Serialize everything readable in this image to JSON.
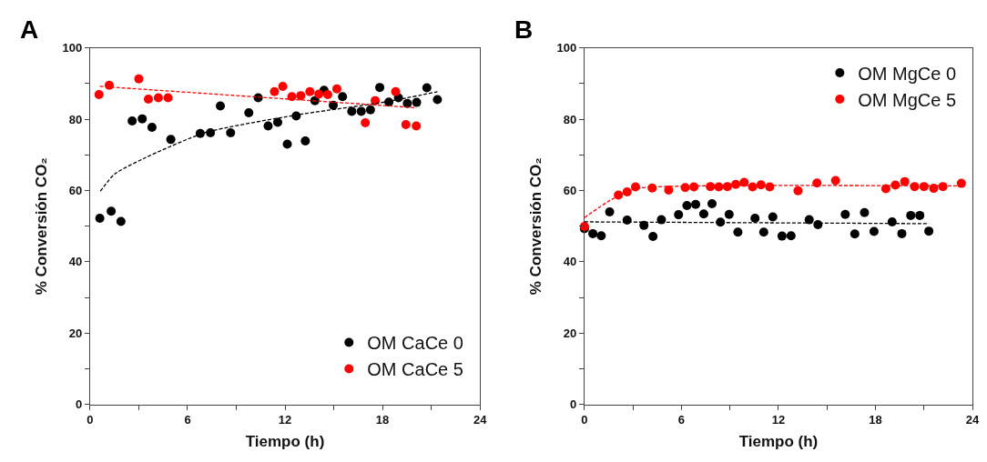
{
  "chart_data": [
    {
      "type": "scatter",
      "title": "A",
      "xlabel": "Tiempo (h)",
      "ylabel": "% Conversión CO₂",
      "xlim": [
        0,
        24
      ],
      "ylim": [
        0,
        100
      ],
      "xticks": [
        0,
        {
          "value": 3,
          "label": null
        },
        6,
        {
          "value": 9,
          "label": null
        },
        12,
        {
          "value": 15,
          "label": null
        },
        18,
        {
          "value": 21,
          "label": null
        },
        24
      ],
      "yticks": [
        0,
        {
          "value": 10,
          "label": null
        },
        20,
        {
          "value": 30,
          "label": null
        },
        40,
        {
          "value": 50,
          "label": null
        },
        60,
        {
          "value": 70,
          "label": null
        },
        80,
        {
          "value": 90,
          "label": null
        },
        100
      ],
      "legend": "bottom right",
      "marker": "circle",
      "series": [
        {
          "name": "OM CaCe 0",
          "color": "#000000",
          "x": [
            0.6,
            1.3,
            1.9,
            2.59,
            3.21,
            3.81,
            4.97,
            6.78,
            7.41,
            8.02,
            8.65,
            9.77,
            10.35,
            10.96,
            11.55,
            12.14,
            12.69,
            13.25,
            13.84,
            14.4,
            14.97,
            15.54,
            16.11,
            16.69,
            17.26,
            17.83,
            18.39,
            18.98,
            19.53,
            20.1,
            20.73,
            21.38
          ],
          "values": [
            52.2,
            54.2,
            51.3,
            79.5,
            80.1,
            77.7,
            74.3,
            76.0,
            76.2,
            83.7,
            76.2,
            81.8,
            86.0,
            78.1,
            79.1,
            73.0,
            80.9,
            73.9,
            85.2,
            88.1,
            83.9,
            86.3,
            82.2,
            82.2,
            82.6,
            88.9,
            84.8,
            86.0,
            84.4,
            84.7,
            88.8,
            85.5
          ]
        },
        {
          "name": "OM CaCe 5",
          "color": "#ff0000",
          "x": [
            0.55,
            1.18,
            3.0,
            3.59,
            4.2,
            4.8,
            11.35,
            11.86,
            12.42,
            12.97,
            13.53,
            14.08,
            14.63,
            15.19,
            16.94,
            17.55,
            18.81,
            19.44,
            20.08
          ],
          "values": [
            86.9,
            89.5,
            91.3,
            85.6,
            86.0,
            86.0,
            87.7,
            89.2,
            86.3,
            86.6,
            87.7,
            87.0,
            86.9,
            88.5,
            79.0,
            85.2,
            87.7,
            78.5,
            78.1
          ]
        },
        {
          "type": "line",
          "line_style": "dashed",
          "marker": "none",
          "color": "#000000",
          "x": [
            0.63,
            1.51,
            3.36,
            7.06,
            12.6,
            18.14,
            21.38
          ],
          "values": [
            59.8,
            64.6,
            69.1,
            76.2,
            81.1,
            84.8,
            87.7
          ]
        },
        {
          "type": "line",
          "line_style": "dashed",
          "marker": "none",
          "color": "#ff0000",
          "x": [
            0.6,
            20.08
          ],
          "values": [
            89.2,
            83.2
          ]
        }
      ]
    },
    {
      "type": "scatter",
      "title": "B",
      "xlabel": "Tiempo (h)",
      "ylabel": "% Conversión CO₂",
      "xlim": [
        0,
        24
      ],
      "ylim": [
        0,
        100
      ],
      "xticks": [
        0,
        {
          "value": 3,
          "label": null
        },
        6,
        {
          "value": 9,
          "label": null
        },
        12,
        {
          "value": 15,
          "label": null
        },
        18,
        {
          "value": 21,
          "label": null
        },
        24
      ],
      "yticks": [
        0,
        {
          "value": 10,
          "label": null
        },
        20,
        {
          "value": 30,
          "label": null
        },
        40,
        {
          "value": 50,
          "label": null
        },
        60,
        {
          "value": 70,
          "label": null
        },
        80,
        {
          "value": 90,
          "label": null
        },
        100
      ],
      "legend": "top right",
      "marker": "circle",
      "series": [
        {
          "name": "OM MgCe 0",
          "color": "#000000",
          "x": [
            0,
            0.52,
            1.04,
            1.56,
            2.64,
            3.68,
            4.24,
            4.76,
            5.82,
            6.34,
            6.88,
            7.38,
            7.89,
            8.41,
            8.95,
            9.49,
            10.55,
            11.09,
            11.65,
            12.22,
            12.78,
            13.9,
            14.44,
            16.13,
            16.72,
            17.32,
            17.91,
            19.03,
            19.63,
            20.18,
            20.74,
            21.3
          ],
          "values": [
            49.3,
            47.9,
            47.3,
            54.0,
            51.7,
            50.2,
            47.1,
            51.8,
            53.2,
            55.8,
            56.1,
            53.4,
            56.3,
            51.1,
            53.3,
            48.3,
            52.2,
            48.3,
            52.6,
            47.2,
            47.3,
            51.8,
            50.4,
            53.3,
            47.8,
            53.8,
            48.5,
            51.2,
            47.9,
            53.0,
            53.0,
            48.6
          ]
        },
        {
          "name": "OM MgCe 5",
          "color": "#ff0000",
          "x": [
            0,
            2.1,
            2.64,
            3.16,
            4.19,
            5.21,
            6.23,
            6.77,
            7.79,
            8.31,
            8.84,
            9.36,
            9.88,
            10.4,
            10.92,
            11.46,
            13.21,
            14.38,
            15.53,
            18.64,
            19.23,
            19.81,
            20.42,
            21.0,
            21.6,
            22.17,
            23.31
          ],
          "values": [
            49.9,
            58.7,
            59.6,
            61.0,
            60.7,
            60.1,
            60.8,
            61.0,
            61.1,
            61.0,
            61.1,
            61.7,
            62.3,
            61.0,
            61.6,
            61.0,
            59.9,
            62.1,
            62.8,
            60.5,
            61.5,
            62.5,
            61.1,
            61.1,
            60.6,
            61.1,
            62.0
          ]
        },
        {
          "type": "line",
          "line_style": "dashed",
          "marker": "none",
          "color": "#000000",
          "x": [
            0,
            21.3
          ],
          "values": [
            51.2,
            50.7
          ]
        },
        {
          "type": "line",
          "line_style": "dashed",
          "marker": "none",
          "color": "#ff0000",
          "x": [
            0,
            1.58,
            3.16,
            7.15,
            23.31
          ],
          "values": [
            52.4,
            57.2,
            60.5,
            61.3,
            61.3
          ]
        }
      ]
    }
  ]
}
